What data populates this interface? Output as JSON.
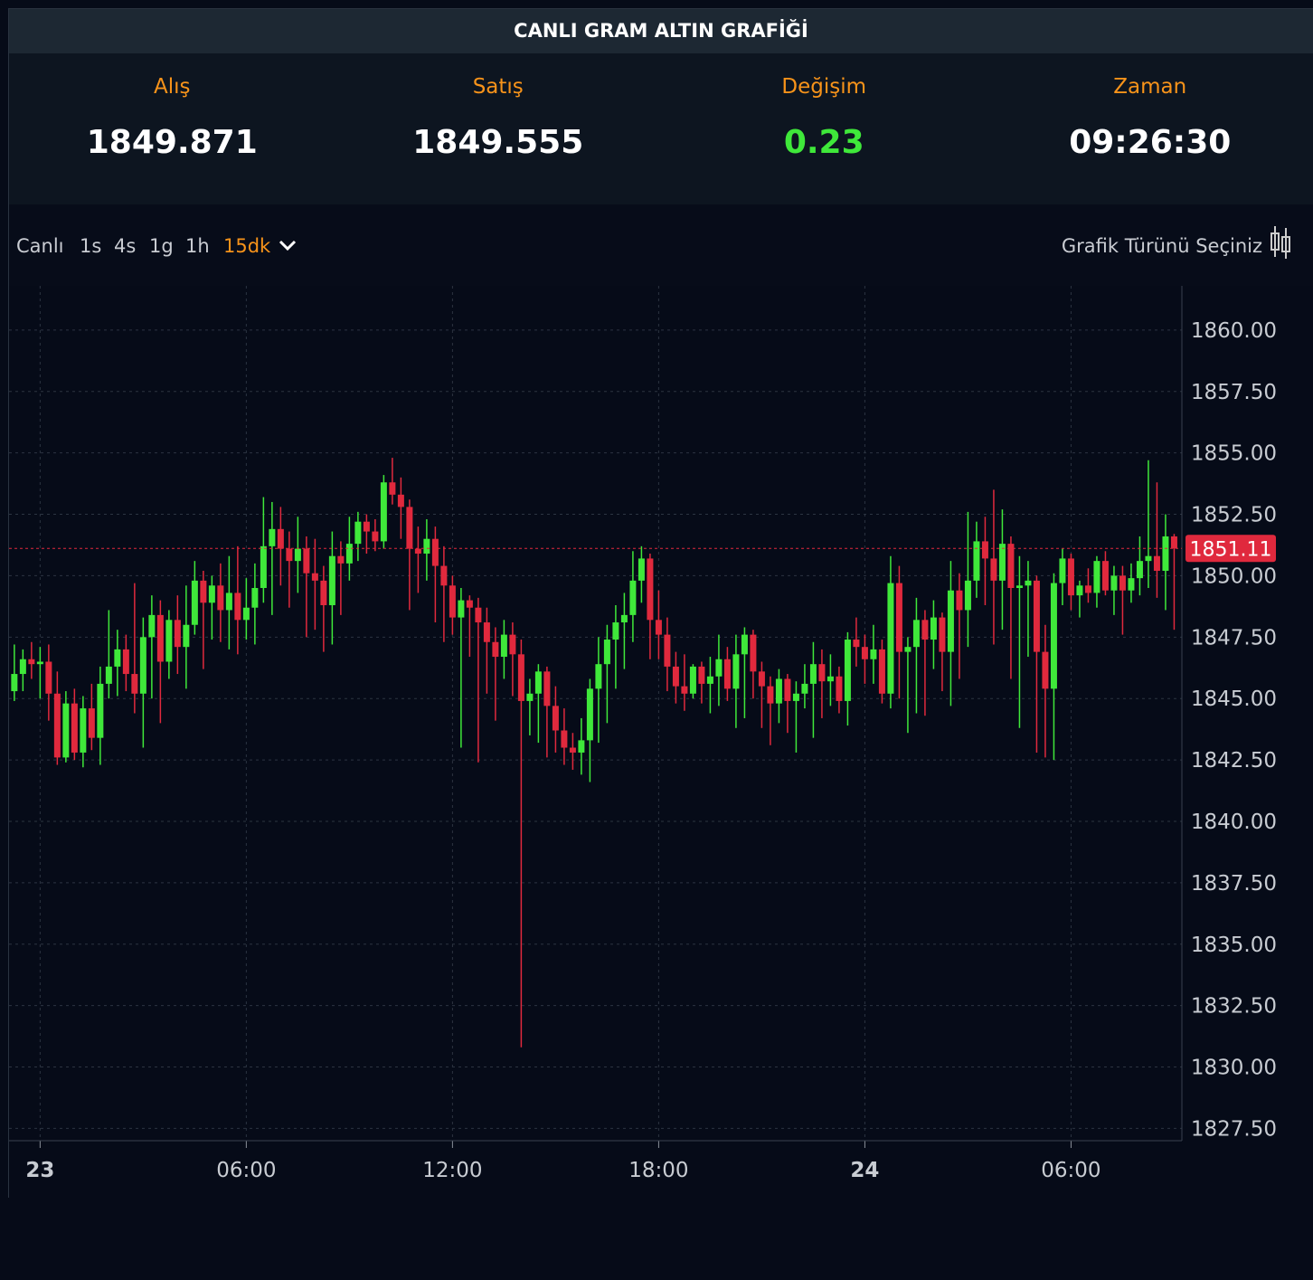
{
  "header": {
    "title": "CANLI GRAM ALTIN GRAFİĞİ",
    "stats": [
      {
        "label": "Alış",
        "value": "1849.871"
      },
      {
        "label": "Satış",
        "value": "1849.555"
      },
      {
        "label": "Değişim",
        "value": "0.23"
      },
      {
        "label": "Zaman",
        "value": "09:26:30"
      }
    ]
  },
  "toolbar": {
    "intervals": [
      "Canlı",
      "1s",
      "4s",
      "1g",
      "1h",
      "15dk"
    ],
    "active": 5,
    "chart_type": "Grafik Türünü Seçiniz"
  },
  "chart_data": {
    "type": "candlestick",
    "up_color": "#3fe83a",
    "down_color": "#e0293d",
    "grid": true,
    "xlim": [
      -0.3,
      135.9
    ],
    "xticks": [
      {
        "value": 3,
        "label": "23"
      },
      {
        "value": 27,
        "label": "06:00"
      },
      {
        "value": 51,
        "label": "12:00"
      },
      {
        "value": 75,
        "label": "18:00"
      },
      {
        "value": 99,
        "label": "24"
      },
      {
        "value": 123,
        "label": "06:00"
      }
    ],
    "ylim": [
      1827.0,
      1861.8
    ],
    "yticks": [
      {
        "value": 1827.5,
        "label": "1827.50"
      },
      {
        "value": 1830,
        "label": "1830.00"
      },
      {
        "value": 1832.5,
        "label": "1832.50"
      },
      {
        "value": 1835,
        "label": "1835.00"
      },
      {
        "value": 1837.5,
        "label": "1837.50"
      },
      {
        "value": 1840,
        "label": "1840.00"
      },
      {
        "value": 1842.5,
        "label": "1842.50"
      },
      {
        "value": 1845,
        "label": "1845.00"
      },
      {
        "value": 1847.5,
        "label": "1847.50"
      },
      {
        "value": 1850,
        "label": "1850.00"
      },
      {
        "value": 1852.5,
        "label": "1852.50"
      },
      {
        "value": 1855,
        "label": "1855.00"
      },
      {
        "value": 1857.5,
        "label": "1857.50"
      },
      {
        "value": 1860,
        "label": "1860.00"
      }
    ],
    "candles": [
      [
        1845.3,
        1847.2,
        1844.9,
        1846.0
      ],
      [
        1846.0,
        1847.0,
        1845.3,
        1846.6
      ],
      [
        1846.6,
        1847.3,
        1845.8,
        1846.4
      ],
      [
        1846.4,
        1847.1,
        1845.0,
        1846.5
      ],
      [
        1846.5,
        1847.2,
        1844.1,
        1845.2
      ],
      [
        1845.2,
        1846.1,
        1842.3,
        1842.6
      ],
      [
        1842.6,
        1845.3,
        1842.4,
        1844.8
      ],
      [
        1844.8,
        1845.4,
        1842.5,
        1842.8
      ],
      [
        1842.8,
        1845.1,
        1842.2,
        1844.6
      ],
      [
        1844.6,
        1845.6,
        1842.9,
        1843.4
      ],
      [
        1843.4,
        1846.3,
        1842.3,
        1845.6
      ],
      [
        1845.6,
        1848.6,
        1845.0,
        1846.3
      ],
      [
        1846.3,
        1847.8,
        1845.1,
        1847.0
      ],
      [
        1847.0,
        1847.6,
        1845.3,
        1846.0
      ],
      [
        1846.0,
        1849.7,
        1844.4,
        1845.2
      ],
      [
        1845.2,
        1848.3,
        1843.0,
        1847.5
      ],
      [
        1847.5,
        1849.2,
        1845.0,
        1848.4
      ],
      [
        1848.4,
        1849.0,
        1844.0,
        1846.5
      ],
      [
        1846.5,
        1848.6,
        1845.8,
        1848.2
      ],
      [
        1848.2,
        1849.2,
        1846.0,
        1847.1
      ],
      [
        1847.1,
        1849.6,
        1845.4,
        1848.0
      ],
      [
        1848.0,
        1850.6,
        1847.6,
        1849.8
      ],
      [
        1849.8,
        1850.2,
        1846.2,
        1848.9
      ],
      [
        1848.9,
        1850.0,
        1847.4,
        1849.6
      ],
      [
        1849.6,
        1850.5,
        1847.3,
        1848.6
      ],
      [
        1848.6,
        1850.8,
        1847.0,
        1849.3
      ],
      [
        1849.3,
        1851.2,
        1846.8,
        1848.2
      ],
      [
        1848.2,
        1849.9,
        1847.4,
        1848.7
      ],
      [
        1848.7,
        1850.5,
        1847.2,
        1849.5
      ],
      [
        1849.5,
        1853.2,
        1848.9,
        1851.2
      ],
      [
        1851.2,
        1853.0,
        1848.4,
        1851.9
      ],
      [
        1851.9,
        1852.8,
        1849.6,
        1851.1
      ],
      [
        1851.1,
        1851.8,
        1848.7,
        1850.6
      ],
      [
        1850.6,
        1852.4,
        1849.3,
        1851.1
      ],
      [
        1851.1,
        1851.6,
        1847.5,
        1850.1
      ],
      [
        1850.1,
        1851.5,
        1847.8,
        1849.8
      ],
      [
        1849.8,
        1850.4,
        1846.9,
        1848.8
      ],
      [
        1848.8,
        1851.8,
        1847.2,
        1850.8
      ],
      [
        1850.8,
        1851.4,
        1848.4,
        1850.5
      ],
      [
        1850.5,
        1852.4,
        1849.8,
        1851.3
      ],
      [
        1851.3,
        1852.6,
        1850.6,
        1852.2
      ],
      [
        1852.2,
        1852.5,
        1850.9,
        1851.8
      ],
      [
        1851.8,
        1852.3,
        1851.0,
        1851.4
      ],
      [
        1851.4,
        1854.1,
        1851.1,
        1853.8
      ],
      [
        1853.8,
        1854.8,
        1852.9,
        1853.3
      ],
      [
        1853.3,
        1854.0,
        1851.5,
        1852.8
      ],
      [
        1852.8,
        1853.1,
        1848.6,
        1851.1
      ],
      [
        1851.1,
        1852.0,
        1849.3,
        1850.9
      ],
      [
        1850.9,
        1852.3,
        1849.8,
        1851.5
      ],
      [
        1851.5,
        1852.0,
        1848.1,
        1850.4
      ],
      [
        1850.4,
        1851.2,
        1847.3,
        1849.6
      ],
      [
        1849.6,
        1850.0,
        1847.6,
        1848.3
      ],
      [
        1848.3,
        1849.5,
        1843.0,
        1849.0
      ],
      [
        1849.0,
        1849.2,
        1846.7,
        1848.7
      ],
      [
        1848.7,
        1849.1,
        1842.4,
        1848.1
      ],
      [
        1848.1,
        1848.7,
        1845.2,
        1847.3
      ],
      [
        1847.3,
        1847.9,
        1844.1,
        1846.7
      ],
      [
        1846.7,
        1848.2,
        1845.8,
        1847.6
      ],
      [
        1847.6,
        1848.1,
        1845.1,
        1846.8
      ],
      [
        1846.8,
        1847.4,
        1830.8,
        1844.9
      ],
      [
        1844.9,
        1845.8,
        1843.5,
        1845.2
      ],
      [
        1845.2,
        1846.4,
        1843.2,
        1846.1
      ],
      [
        1846.1,
        1846.3,
        1842.6,
        1844.7
      ],
      [
        1844.7,
        1845.5,
        1842.8,
        1843.7
      ],
      [
        1843.7,
        1844.6,
        1842.3,
        1843.0
      ],
      [
        1843.0,
        1843.6,
        1842.1,
        1842.8
      ],
      [
        1842.8,
        1844.2,
        1841.9,
        1843.3
      ],
      [
        1843.3,
        1845.8,
        1841.6,
        1845.4
      ],
      [
        1845.4,
        1847.5,
        1843.2,
        1846.4
      ],
      [
        1846.4,
        1848.0,
        1844.0,
        1847.4
      ],
      [
        1847.4,
        1848.8,
        1845.4,
        1848.1
      ],
      [
        1848.1,
        1849.3,
        1846.2,
        1848.4
      ],
      [
        1848.4,
        1851.0,
        1847.3,
        1849.8
      ],
      [
        1849.8,
        1851.2,
        1848.9,
        1850.7
      ],
      [
        1850.7,
        1850.9,
        1846.6,
        1848.2
      ],
      [
        1848.2,
        1849.4,
        1846.6,
        1847.6
      ],
      [
        1847.6,
        1848.3,
        1845.3,
        1846.3
      ],
      [
        1846.3,
        1846.9,
        1844.8,
        1845.5
      ],
      [
        1845.5,
        1846.8,
        1844.5,
        1845.2
      ],
      [
        1845.2,
        1846.4,
        1845.0,
        1846.3
      ],
      [
        1846.3,
        1846.5,
        1844.8,
        1845.6
      ],
      [
        1845.6,
        1846.7,
        1844.4,
        1845.9
      ],
      [
        1845.9,
        1847.6,
        1844.7,
        1846.6
      ],
      [
        1846.6,
        1847.1,
        1844.9,
        1845.4
      ],
      [
        1845.4,
        1847.6,
        1843.8,
        1846.8
      ],
      [
        1846.8,
        1847.9,
        1844.2,
        1847.6
      ],
      [
        1847.6,
        1847.8,
        1845.0,
        1846.1
      ],
      [
        1846.1,
        1846.5,
        1843.8,
        1845.5
      ],
      [
        1845.5,
        1845.9,
        1843.1,
        1844.8
      ],
      [
        1844.8,
        1846.2,
        1844.0,
        1845.8
      ],
      [
        1845.8,
        1846.0,
        1843.6,
        1844.9
      ],
      [
        1844.9,
        1845.7,
        1842.8,
        1845.2
      ],
      [
        1845.2,
        1846.4,
        1844.6,
        1845.6
      ],
      [
        1845.6,
        1847.3,
        1843.4,
        1846.4
      ],
      [
        1846.4,
        1847.0,
        1844.2,
        1845.7
      ],
      [
        1845.7,
        1846.8,
        1844.7,
        1845.9
      ],
      [
        1845.9,
        1846.3,
        1844.4,
        1844.9
      ],
      [
        1844.9,
        1847.7,
        1843.9,
        1847.4
      ],
      [
        1847.4,
        1848.3,
        1846.3,
        1847.1
      ],
      [
        1847.1,
        1847.6,
        1845.6,
        1846.6
      ],
      [
        1846.6,
        1848.0,
        1845.6,
        1847.0
      ],
      [
        1847.0,
        1847.4,
        1844.8,
        1845.2
      ],
      [
        1845.2,
        1850.8,
        1844.6,
        1849.7
      ],
      [
        1849.7,
        1850.4,
        1845.0,
        1846.9
      ],
      [
        1846.9,
        1847.5,
        1843.6,
        1847.1
      ],
      [
        1847.1,
        1849.1,
        1844.4,
        1848.2
      ],
      [
        1848.2,
        1848.6,
        1844.3,
        1847.4
      ],
      [
        1847.4,
        1849.0,
        1846.2,
        1848.3
      ],
      [
        1848.3,
        1848.5,
        1845.3,
        1846.9
      ],
      [
        1846.9,
        1850.6,
        1844.7,
        1849.4
      ],
      [
        1849.4,
        1850.1,
        1845.8,
        1848.6
      ],
      [
        1848.6,
        1852.6,
        1847.1,
        1849.8
      ],
      [
        1849.8,
        1852.2,
        1849.1,
        1851.4
      ],
      [
        1851.4,
        1852.4,
        1848.8,
        1850.7
      ],
      [
        1850.7,
        1853.5,
        1847.2,
        1849.8
      ],
      [
        1849.8,
        1852.7,
        1847.8,
        1851.3
      ],
      [
        1851.3,
        1851.6,
        1845.8,
        1849.5
      ],
      [
        1849.5,
        1850.8,
        1843.8,
        1849.6
      ],
      [
        1849.6,
        1850.6,
        1846.7,
        1849.8
      ],
      [
        1849.8,
        1850.0,
        1842.8,
        1846.9
      ],
      [
        1846.9,
        1848.0,
        1842.6,
        1845.4
      ],
      [
        1845.4,
        1850.1,
        1842.5,
        1849.7
      ],
      [
        1849.7,
        1851.1,
        1848.8,
        1850.7
      ],
      [
        1850.7,
        1850.9,
        1848.6,
        1849.2
      ],
      [
        1849.2,
        1849.8,
        1848.3,
        1849.6
      ],
      [
        1849.6,
        1850.3,
        1848.9,
        1849.3
      ],
      [
        1849.3,
        1850.8,
        1848.7,
        1850.6
      ],
      [
        1850.6,
        1851.0,
        1849.2,
        1849.4
      ],
      [
        1849.4,
        1850.4,
        1848.4,
        1850.0
      ],
      [
        1850.0,
        1850.4,
        1847.6,
        1849.4
      ],
      [
        1849.4,
        1850.5,
        1848.9,
        1849.9
      ],
      [
        1849.9,
        1851.6,
        1849.2,
        1850.6
      ],
      [
        1850.6,
        1854.7,
        1849.5,
        1850.8
      ],
      [
        1850.8,
        1853.8,
        1849.1,
        1850.2
      ],
      [
        1850.2,
        1852.5,
        1848.6,
        1851.6
      ],
      [
        1851.6,
        1851.7,
        1847.8,
        1851.11
      ]
    ]
  }
}
